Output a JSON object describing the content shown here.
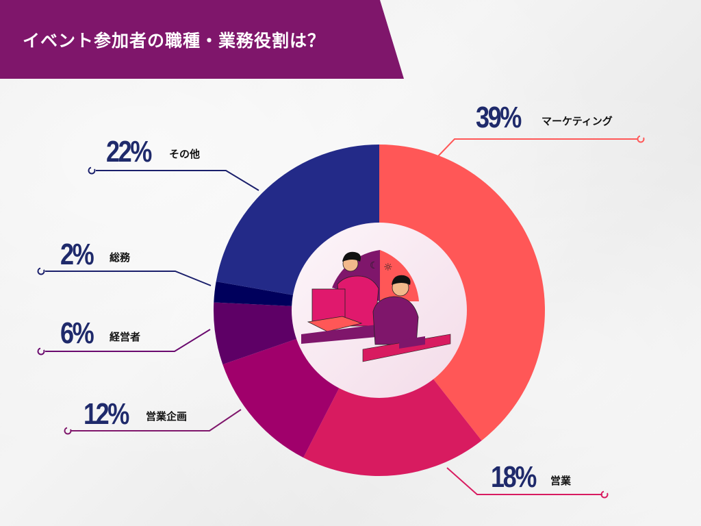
{
  "title": "イベント参加者の職種・業務役割は？",
  "colors": {
    "banner": "#7f166b",
    "percent_text": "#1f2a6b",
    "center_fill": "#f7e6f0"
  },
  "chart_data": {
    "type": "pie",
    "subtype": "donut",
    "title": "イベント参加者の職種・業務役割は？",
    "categories": [
      "マーケティング",
      "営業",
      "営業企画",
      "経営者",
      "総務",
      "その他"
    ],
    "values": [
      39,
      18,
      12,
      6,
      2,
      22
    ],
    "unit": "%",
    "colors": [
      "#ff5757",
      "#d81b60",
      "#a0006b",
      "#5e0066",
      "#00005c",
      "#232a88"
    ],
    "start_angle_deg": 0,
    "direction": "clockwise",
    "legend": "callout labels with leader lines",
    "center_image": "illustration of two people working at computers"
  },
  "labels": [
    {
      "pct": "39%",
      "name": "マーケティング"
    },
    {
      "pct": "18%",
      "name": "営業"
    },
    {
      "pct": "12%",
      "name": "営業企画"
    },
    {
      "pct": "6%",
      "name": "経営者"
    },
    {
      "pct": "2%",
      "name": "総務"
    },
    {
      "pct": "22%",
      "name": "その他"
    }
  ]
}
